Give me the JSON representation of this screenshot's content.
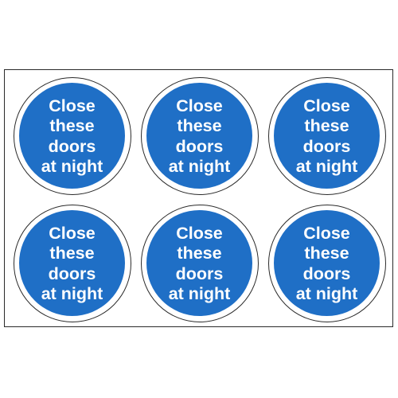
{
  "colors": {
    "sign_blue": "#1f6fc6",
    "text": "#ffffff",
    "outline": "#2a2a2a"
  },
  "stickers": [
    {
      "lines": [
        "Close",
        "these",
        "doors",
        "at night"
      ]
    },
    {
      "lines": [
        "Close",
        "these",
        "doors",
        "at night"
      ]
    },
    {
      "lines": [
        "Close",
        "these",
        "doors",
        "at night"
      ]
    },
    {
      "lines": [
        "Close",
        "these",
        "doors",
        "at night"
      ]
    },
    {
      "lines": [
        "Close",
        "these",
        "doors",
        "at night"
      ]
    },
    {
      "lines": [
        "Close",
        "these",
        "doors",
        "at night"
      ]
    }
  ]
}
